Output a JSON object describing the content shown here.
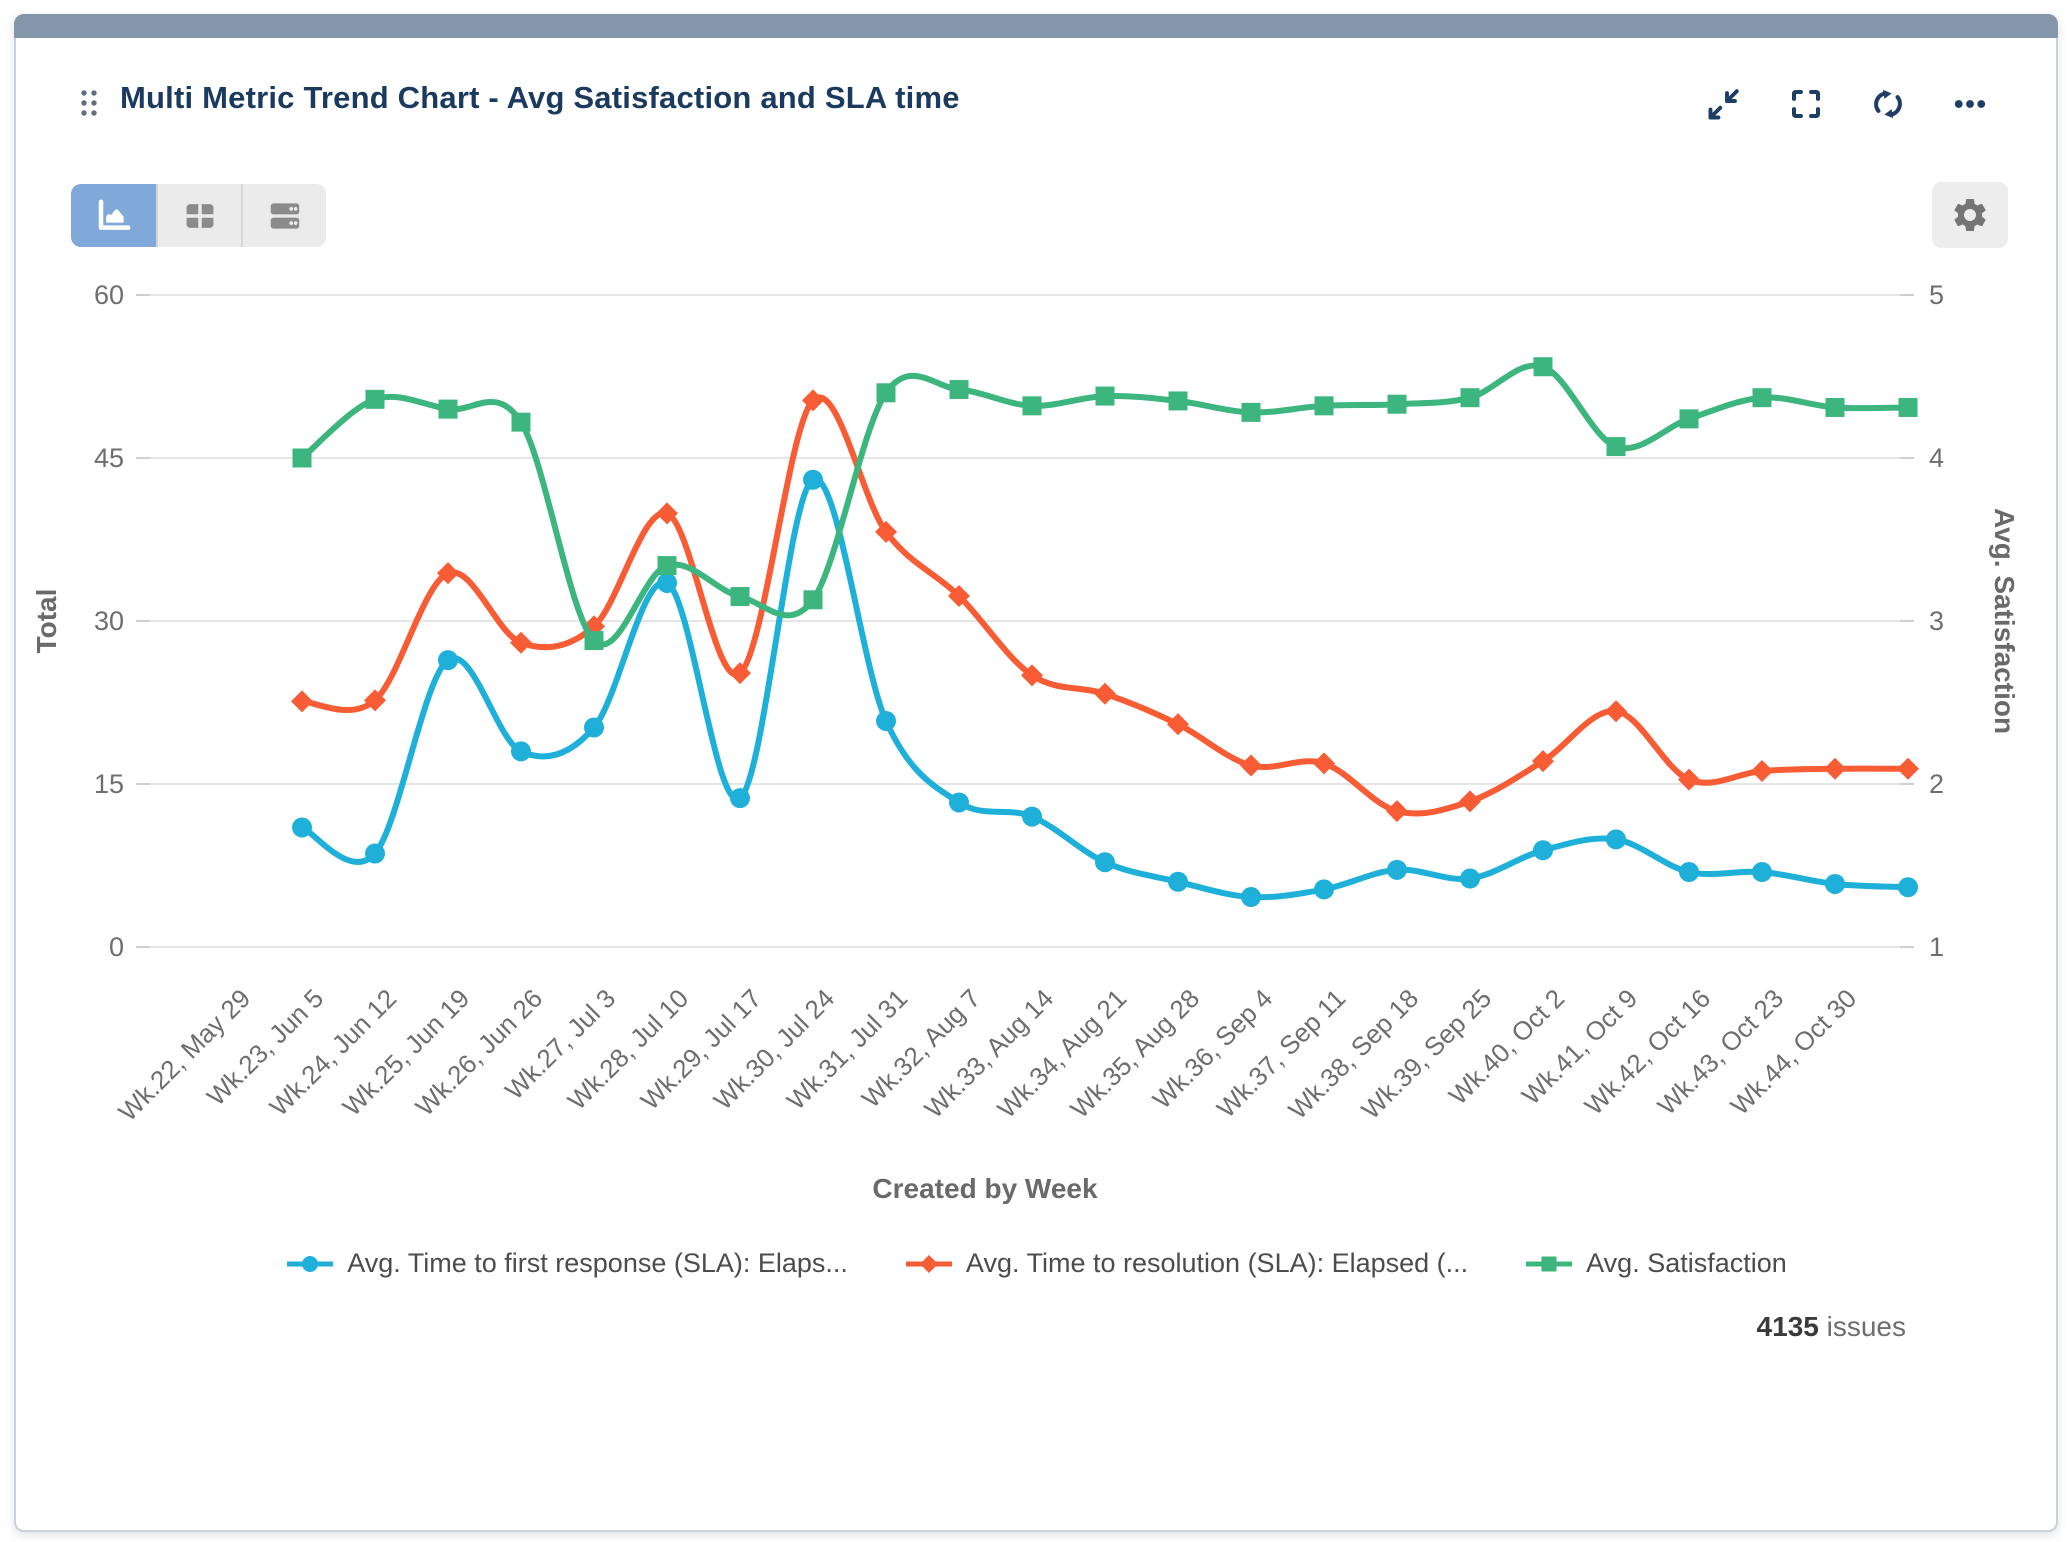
{
  "header": {
    "title": "Multi Metric Trend Chart - Avg Satisfaction and SLA time"
  },
  "icons": {
    "header": [
      "drag-handle",
      "collapse",
      "fullscreen",
      "refresh",
      "more-ellipsis"
    ],
    "toolbar": [
      "area-chart-view",
      "table-view",
      "rows-view",
      "settings-gear"
    ]
  },
  "colors": {
    "topbar": "#8596ab",
    "title_text": "#1b3a5f",
    "icon_navy": "#1f3e66",
    "toggle_active_bg": "#80a9da",
    "series_blue": "#1fb0d9",
    "series_red": "#f85c35",
    "series_green": "#3db57e",
    "gridline": "#e5e5e5",
    "axis_text": "#6e6e6e"
  },
  "footer": {
    "issues_count": "4135",
    "issues_label": "issues"
  },
  "chart_data": {
    "type": "line",
    "smooth": true,
    "grid": true,
    "legend_position": "bottom",
    "xlabel": "Created by Week",
    "ylabel_left": "Total",
    "ylabel_right": "Avg. Satisfaction",
    "ylim_left": [
      0,
      60
    ],
    "yticks_left": [
      0,
      15,
      30,
      45,
      60
    ],
    "ylim_right": [
      1,
      5
    ],
    "yticks_right": [
      1,
      2,
      3,
      4,
      5
    ],
    "categories": [
      "Wk.22, May 29",
      "Wk.23, Jun 5",
      "Wk.24, Jun 12",
      "Wk.25, Jun 19",
      "Wk.26, Jun 26",
      "Wk.27, Jul 3",
      "Wk.28, Jul 10",
      "Wk.29, Jul 17",
      "Wk.30, Jul 24",
      "Wk.31, Jul 31",
      "Wk.32, Aug 7",
      "Wk.33, Aug 14",
      "Wk.34, Aug 21",
      "Wk.35, Aug 28",
      "Wk.36, Sep 4",
      "Wk.37, Sep 11",
      "Wk.38, Sep 18",
      "Wk.39, Sep 25",
      "Wk.40, Oct 2",
      "Wk.41, Oct 9",
      "Wk.42, Oct 16",
      "Wk.43, Oct 23",
      "Wk.44, Oct 30"
    ],
    "series": [
      {
        "name": "Avg. Time to first response (SLA): Elaps...",
        "axis": "left",
        "color": "#1fb0d9",
        "marker": "circle",
        "values": [
          11,
          8.6,
          26.4,
          18,
          20.2,
          33.5,
          13.7,
          43,
          20.8,
          13.3,
          12,
          7.8,
          6,
          4.6,
          5.3,
          7.1,
          6.3,
          8.9,
          9.9,
          6.9,
          6.9,
          5.8,
          5.5
        ]
      },
      {
        "name": "Avg. Time to resolution (SLA): Elapsed (...",
        "axis": "left",
        "color": "#f85c35",
        "marker": "diamond",
        "values": [
          22.6,
          22.7,
          34.4,
          28,
          29.5,
          39.9,
          25.2,
          50.3,
          38.2,
          32.3,
          25,
          23.3,
          20.5,
          16.7,
          16.9,
          12.5,
          13.4,
          17.1,
          21.7,
          15.4,
          16.2,
          16.4,
          16.4
        ]
      },
      {
        "name": "Avg. Satisfaction",
        "axis": "right",
        "color": "#3db57e",
        "marker": "square",
        "values": [
          4.0,
          4.36,
          4.3,
          4.22,
          2.88,
          3.34,
          3.15,
          3.13,
          4.4,
          4.42,
          4.32,
          4.38,
          4.35,
          4.28,
          4.32,
          4.33,
          4.37,
          4.56,
          4.07,
          4.24,
          4.37,
          4.31,
          4.31
        ]
      }
    ]
  }
}
